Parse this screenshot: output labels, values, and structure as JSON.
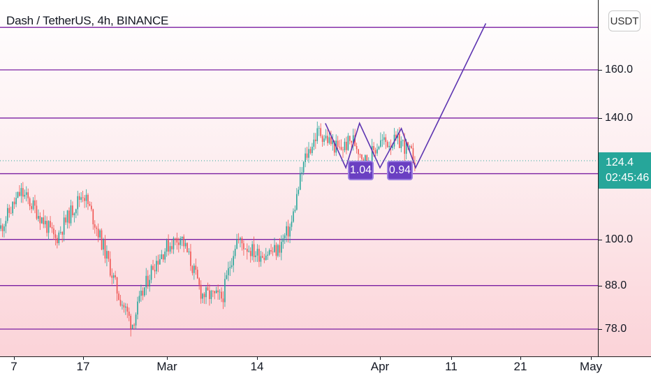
{
  "header": {
    "symbol_title": "Dash / TetherUS, 4h, BINANCE"
  },
  "price_scale": {
    "currency": "USDT",
    "last_price": "124.4",
    "countdown": "02:45:46"
  },
  "pattern_ratios": [
    "1.04",
    "0.94"
  ],
  "colors": {
    "level_line": "#7b1fa2",
    "pattern_line": "#5e35b1",
    "bull_candle": "#26a69a",
    "bear_candle": "#ef5350",
    "badge": "#6a3fc2",
    "last_price_bg": "#26a69a"
  },
  "chart_data": {
    "type": "candlestick",
    "title": "Dash / TetherUS, 4h, BINANCE",
    "y_scale": "log",
    "ylim": [
      74,
      190
    ],
    "y_tick_labels": [
      "160.0",
      "140.0",
      "124.4",
      "100.0",
      "88.0",
      "78.0"
    ],
    "x_tick_labels": [
      "7",
      "17",
      "Mar",
      "14",
      "Apr",
      "11",
      "21",
      "May"
    ],
    "last_price": 124.4,
    "horizontal_levels": [
      180,
      160,
      140,
      120,
      100,
      88,
      78
    ],
    "close_path_estimate": [
      {
        "date": "Feb 5",
        "close": 103
      },
      {
        "date": "Feb 8",
        "close": 114
      },
      {
        "date": "Feb 10",
        "close": 109
      },
      {
        "date": "Feb 13",
        "close": 100
      },
      {
        "date": "Feb 15",
        "close": 107
      },
      {
        "date": "Feb 17",
        "close": 114
      },
      {
        "date": "Feb 19",
        "close": 103
      },
      {
        "date": "Feb 22",
        "close": 86
      },
      {
        "date": "Feb 24",
        "close": 79
      },
      {
        "date": "Feb 27",
        "close": 93
      },
      {
        "date": "Mar 1",
        "close": 98
      },
      {
        "date": "Mar 3",
        "close": 101
      },
      {
        "date": "Mar 6",
        "close": 86
      },
      {
        "date": "Mar 9",
        "close": 85
      },
      {
        "date": "Mar 11",
        "close": 100
      },
      {
        "date": "Mar 14",
        "close": 96
      },
      {
        "date": "Mar 17",
        "close": 97
      },
      {
        "date": "Mar 19",
        "close": 104
      },
      {
        "date": "Mar 21",
        "close": 125
      },
      {
        "date": "Mar 23",
        "close": 135
      },
      {
        "date": "Mar 26",
        "close": 128
      },
      {
        "date": "Mar 28",
        "close": 132
      },
      {
        "date": "Mar 30",
        "close": 124
      },
      {
        "date": "Apr 1",
        "close": 131
      },
      {
        "date": "Apr 4",
        "close": 131
      },
      {
        "date": "Apr 6",
        "close": 124.4
      }
    ],
    "pattern_points": [
      {
        "date": "Mar 24",
        "value": 138
      },
      {
        "date": "Mar 27",
        "value": 122
      },
      {
        "date": "Mar 29",
        "value": 138
      },
      {
        "date": "Apr 1",
        "value": 122
      },
      {
        "date": "Apr 4",
        "value": 136
      },
      {
        "date": "Apr 6",
        "value": 122
      },
      {
        "date": "Apr 16",
        "value": 182
      }
    ]
  }
}
